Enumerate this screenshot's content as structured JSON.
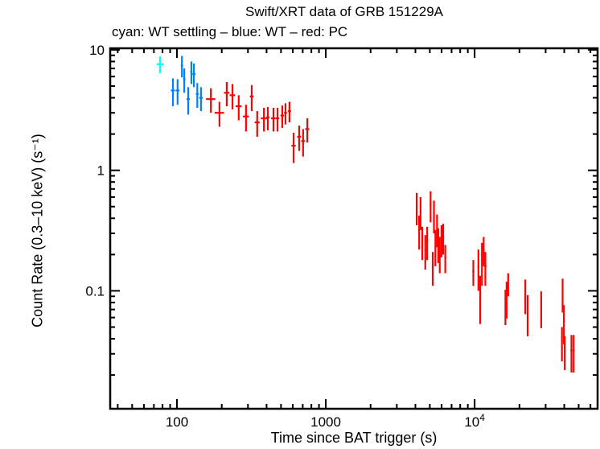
{
  "chart_data": {
    "type": "scatter",
    "title": "Swift/XRT data of GRB 151229A",
    "subtitle": "cyan: WT settling – blue: WT – red: PC",
    "xlabel": "Time since BAT trigger (s)",
    "ylabel": "Count Rate (0.3–10 keV) (s⁻¹)",
    "xscale": "log",
    "yscale": "log",
    "xlim": [
      35.6,
      67000
    ],
    "ylim": [
      0.0105,
      10.3
    ],
    "grid": false,
    "x_ticks": [
      {
        "value": 100,
        "label": "100"
      },
      {
        "value": 1000,
        "label": "1000"
      },
      {
        "value": 10000,
        "label": "10",
        "sup": "4"
      }
    ],
    "y_ticks": [
      {
        "value": 10,
        "label": "10"
      },
      {
        "value": 1,
        "label": "1"
      },
      {
        "value": 0.1,
        "label": "0.1"
      }
    ],
    "series": [
      {
        "name": "WT settling",
        "color": "#00ffff",
        "points": [
          [
            77,
            7.6,
            4,
            1.2
          ]
        ]
      },
      {
        "name": "WT",
        "color": "#0080ff",
        "points": [
          [
            94,
            4.6,
            3,
            1.2
          ],
          [
            101,
            4.6,
            3,
            1.1
          ],
          [
            108,
            7.4,
            2,
            1.5
          ],
          [
            112,
            5.7,
            2,
            1.3
          ],
          [
            119,
            3.9,
            3,
            1.0
          ],
          [
            125,
            6.6,
            2,
            1.4
          ],
          [
            130,
            6.3,
            3,
            1.4
          ],
          [
            137,
            4.3,
            3,
            1.0
          ],
          [
            145,
            4.0,
            4,
            0.9
          ]
        ]
      },
      {
        "name": "PC",
        "color": "#ff0000",
        "points": [
          [
            169,
            3.9,
            12,
            0.9
          ],
          [
            193,
            3.0,
            14,
            0.7
          ],
          [
            216,
            4.4,
            9,
            1.0
          ],
          [
            236,
            4.2,
            10,
            1.0
          ],
          [
            260,
            3.4,
            12,
            0.8
          ],
          [
            291,
            2.8,
            13,
            0.7
          ],
          [
            318,
            4.1,
            9,
            1.0
          ],
          [
            346,
            2.5,
            13,
            0.6
          ],
          [
            384,
            2.7,
            18,
            0.6
          ],
          [
            408,
            2.75,
            10,
            0.6
          ],
          [
            445,
            2.7,
            16,
            0.6
          ],
          [
            474,
            2.7,
            12,
            0.6
          ],
          [
            510,
            2.85,
            14,
            0.6
          ],
          [
            536,
            3.0,
            12,
            0.6
          ],
          [
            570,
            3.1,
            14,
            0.6
          ],
          [
            608,
            1.6,
            20,
            0.45
          ],
          [
            662,
            1.9,
            20,
            0.45
          ],
          [
            704,
            1.75,
            20,
            0.45
          ],
          [
            751,
            2.2,
            24,
            0.5
          ],
          [
            4080,
            0.5,
            40,
            0.15
          ],
          [
            4240,
            0.32,
            60,
            0.1
          ],
          [
            4330,
            0.46,
            50,
            0.14
          ],
          [
            4450,
            0.26,
            60,
            0.08
          ],
          [
            4660,
            0.22,
            60,
            0.07
          ],
          [
            4800,
            0.26,
            70,
            0.08
          ],
          [
            5060,
            0.52,
            60,
            0.15
          ],
          [
            5230,
            0.16,
            60,
            0.05
          ],
          [
            5330,
            0.43,
            60,
            0.13
          ],
          [
            5450,
            0.24,
            50,
            0.08
          ],
          [
            5590,
            0.33,
            60,
            0.1
          ],
          [
            5700,
            0.25,
            60,
            0.08
          ],
          [
            5830,
            0.21,
            60,
            0.07
          ],
          [
            5990,
            0.27,
            60,
            0.08
          ],
          [
            6150,
            0.28,
            80,
            0.08
          ],
          [
            6350,
            0.19,
            90,
            0.05
          ],
          [
            9800,
            0.145,
            150,
            0.035
          ],
          [
            10600,
            0.16,
            150,
            0.06
          ],
          [
            10900,
            0.093,
            120,
            0.04
          ],
          [
            11200,
            0.18,
            150,
            0.07
          ],
          [
            11500,
            0.22,
            150,
            0.06
          ],
          [
            11800,
            0.16,
            200,
            0.05
          ],
          [
            16100,
            0.077,
            150,
            0.025
          ],
          [
            16400,
            0.089,
            150,
            0.03
          ],
          [
            16800,
            0.115,
            150,
            0.025
          ],
          [
            21900,
            0.094,
            200,
            0.03
          ],
          [
            22700,
            0.067,
            200,
            0.025
          ],
          [
            28000,
            0.074,
            300,
            0.025
          ],
          [
            39000,
            0.096,
            200,
            0.03
          ],
          [
            38600,
            0.038,
            400,
            0.012
          ],
          [
            39800,
            0.056,
            500,
            0.02
          ],
          [
            40300,
            0.032,
            500,
            0.01
          ],
          [
            44700,
            0.032,
            700,
            0.011
          ],
          [
            46300,
            0.032,
            600,
            0.011
          ]
        ]
      }
    ]
  }
}
